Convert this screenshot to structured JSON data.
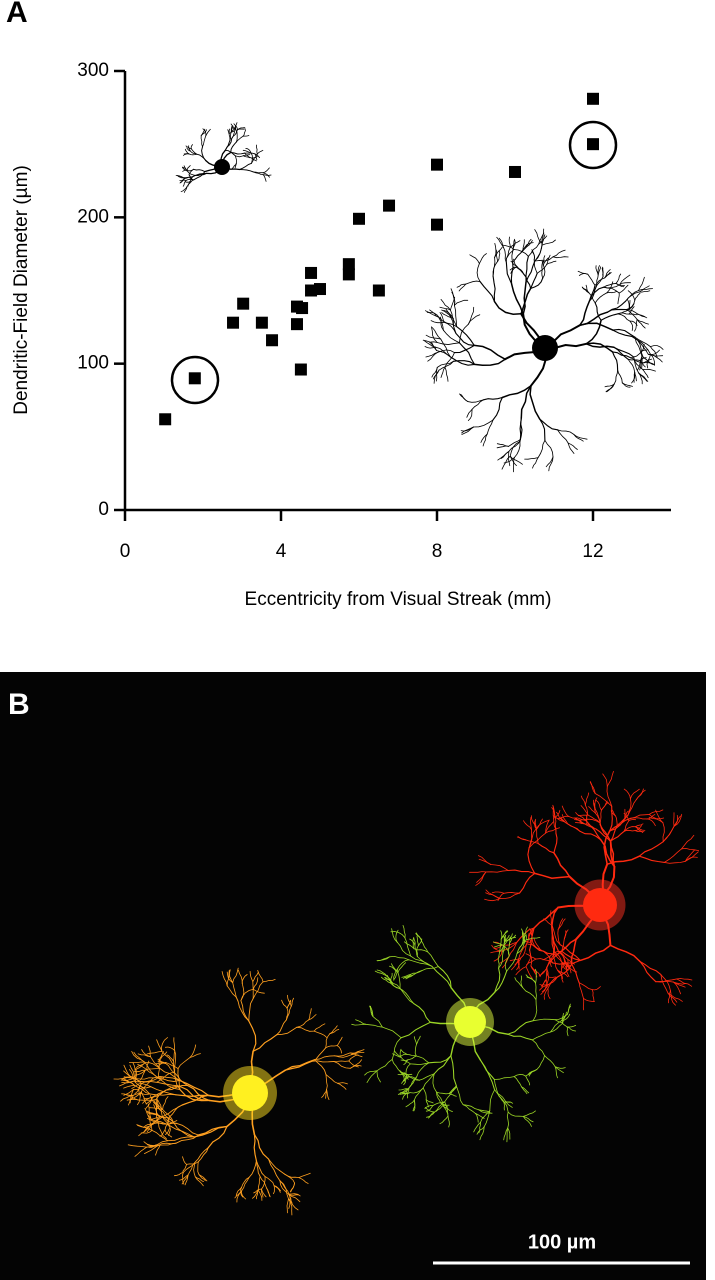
{
  "panel_a": {
    "label": "A"
  },
  "chart_data": {
    "type": "scatter",
    "x_label": "Eccentricity from Visual Streak (mm)",
    "y_label": "Dendritic-Field Diameter (µm)",
    "x": [
      1.03,
      1.79,
      2.77,
      3.03,
      3.51,
      3.77,
      4.41,
      4.41,
      4.51,
      4.54,
      4.77,
      4.77,
      5.0,
      5.74,
      5.74,
      6.0,
      6.51,
      6.77,
      8.0,
      8.0,
      10.0,
      12.0,
      12.0
    ],
    "y": [
      62,
      90,
      128,
      141,
      128,
      116,
      139,
      127,
      96,
      138,
      162,
      150,
      151,
      168,
      161,
      199,
      150,
      208,
      236,
      195,
      231,
      281,
      250
    ],
    "xlim": [
      0,
      14
    ],
    "ylim": [
      0,
      300
    ],
    "xticks": [
      0,
      4,
      8,
      12
    ],
    "yticks": [
      0,
      100,
      200,
      300
    ],
    "color": "#000000"
  },
  "panel_b": {
    "label": "B",
    "scale_bar_label": "100 µm"
  }
}
